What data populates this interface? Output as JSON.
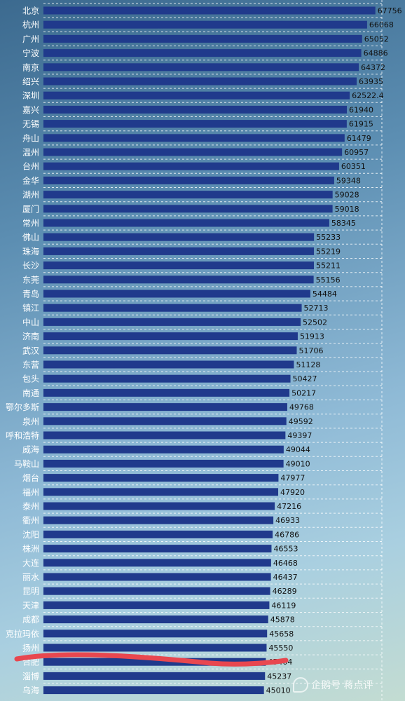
{
  "chart_data": {
    "type": "bar",
    "orientation": "horizontal",
    "title": "",
    "xlabel": "",
    "ylabel": "",
    "grid": true,
    "colors": {
      "bar": "#203a8c",
      "annotation": "#e8474f"
    },
    "xlim": [
      0,
      68800
    ],
    "categories": [
      "北京",
      "杭州",
      "广州",
      "宁波",
      "南京",
      "绍兴",
      "深圳",
      "嘉兴",
      "无锡",
      "舟山",
      "温州",
      "台州",
      "金华",
      "湖州",
      "厦门",
      "常州",
      "佛山",
      "珠海",
      "长沙",
      "东莞",
      "青岛",
      "镇江",
      "中山",
      "济南",
      "武汉",
      "东营",
      "包头",
      "南通",
      "鄂尔多斯",
      "泉州",
      "呼和浩特",
      "威海",
      "马鞍山",
      "烟台",
      "福州",
      "泰州",
      "衢州",
      "沈阳",
      "株洲",
      "大连",
      "丽水",
      "昆明",
      "天津",
      "成都",
      "克拉玛依",
      "扬州",
      "合肥",
      "淄博",
      "乌海"
    ],
    "value_labels": [
      "67756",
      "66068",
      "65052",
      "64886",
      "64372",
      "63935",
      "62522.4",
      "61940",
      "61915",
      "61479",
      "60957",
      "60351",
      "59348",
      "59028",
      "59018",
      "58345",
      "55233",
      "55219",
      "55211",
      "55156",
      "54484",
      "52713",
      "52502",
      "51913",
      "51706",
      "51128",
      "50427",
      "50217",
      "49768",
      "49592",
      "49397",
      "49044",
      "49010",
      "47977",
      "47920",
      "47216",
      "46933",
      "46786",
      "46553",
      "46468",
      "46437",
      "46289",
      "46119",
      "45878",
      "45658",
      "45550",
      "45404",
      "45237",
      "45010"
    ],
    "values": [
      67756,
      66068,
      65052,
      64886,
      64372,
      63935,
      62522.4,
      61940,
      61915,
      61479,
      60957,
      60351,
      59348,
      59028,
      59018,
      58345,
      55233,
      55219,
      55211,
      55156,
      54484,
      52713,
      52502,
      51913,
      51706,
      51128,
      50427,
      50217,
      49768,
      49592,
      49397,
      49044,
      49010,
      47977,
      47920,
      47216,
      46933,
      46786,
      46553,
      46468,
      46437,
      46289,
      46119,
      45878,
      45658,
      45550,
      45404,
      45237,
      45010
    ],
    "annotation": {
      "type": "hand-drawn-underline",
      "target": "合肥"
    }
  },
  "watermark": {
    "text": "企鹅号 蒋点评",
    "icon": "penguin-icon"
  }
}
